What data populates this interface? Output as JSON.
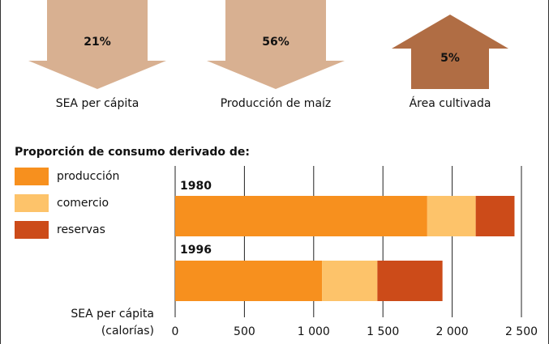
{
  "indicators": [
    {
      "label": "SEA per cápita",
      "value": 21,
      "value_label": "21%",
      "direction": "down",
      "color": "#d8b091"
    },
    {
      "label": "Producción de maíz",
      "value": 56,
      "value_label": "56%",
      "direction": "down",
      "color": "#d8b091"
    },
    {
      "label": "Área cultivada",
      "value": 5,
      "value_label": "5%",
      "direction": "up",
      "color": "#b06d44"
    }
  ],
  "chart_data": {
    "type": "bar",
    "orientation": "horizontal",
    "stacked": true,
    "title": "Proporción de consumo derivado de:",
    "xlabel": [
      "SEA per cápita",
      "(calorías)"
    ],
    "categories": [
      "1980",
      "1996"
    ],
    "series": [
      {
        "name": "producción",
        "color": "#f7901e",
        "values": [
          1820,
          1060
        ]
      },
      {
        "name": "comercio",
        "color": "#fdc36a",
        "values": [
          350,
          400
        ]
      },
      {
        "name": "reservas",
        "color": "#cc4b19",
        "values": [
          280,
          470
        ]
      }
    ],
    "xlim": [
      0,
      2500
    ],
    "xticks": [
      0,
      500,
      {
        "value": 1000,
        "label": "1 000"
      },
      {
        "value": 1500,
        "label": "1 500"
      },
      {
        "value": 2000,
        "label": "2 000"
      },
      {
        "value": 2500,
        "label": "2 500"
      }
    ],
    "grid": true
  }
}
